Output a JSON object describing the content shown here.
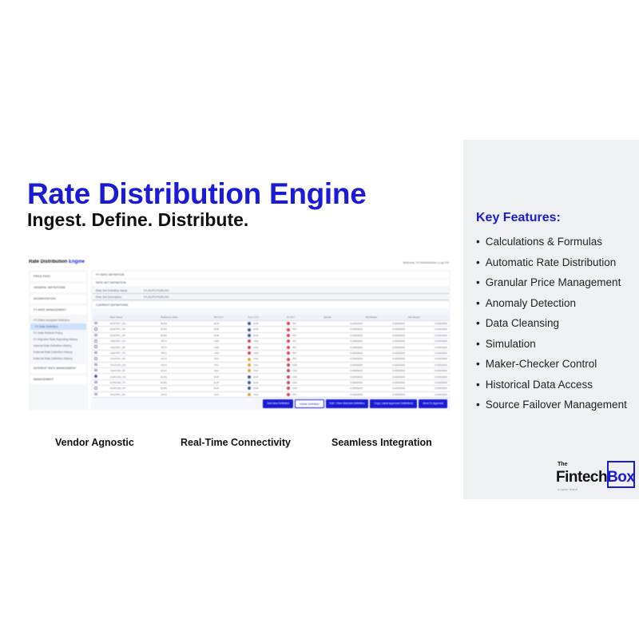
{
  "title": "Rate Distribution Engine",
  "subtitle": "Ingest. Define. Distribute.",
  "key_features": {
    "heading": "Key Features:",
    "items": [
      "Calculations & Formulas",
      "Automatic Rate Distribution",
      "Granular Price Management",
      "Anomaly Detection",
      "Data Cleansing",
      "Simulation",
      "Maker-Checker Control",
      "Historical Data Access",
      "Source Failover Management"
    ]
  },
  "captions": [
    "Vendor Agnostic",
    "Real-Time Connectivity",
    "Seamless Integration"
  ],
  "logo": {
    "the": "The",
    "fintech": "Fintech",
    "box": "Box",
    "sub": "a Lykke brand"
  },
  "screenshot": {
    "title_a": "Rate Distribution",
    "title_b": "Engine",
    "welcome": "Welcome, FX Administrator  |  Log Out",
    "sidebar": [
      "PRICE FEED",
      "GENERAL DEFINITIONS",
      "SEGMENTATION",
      "FX RATE MANAGEMENT"
    ],
    "subitems": [
      "FX Rates Accepted Selection",
      "FX Rate Definition",
      "FX Rate Refresh Policy",
      "FX Adjusted Rate Reporting History",
      "Internal Rate Definition History",
      "External Rate Definition History",
      "External Rate Definition History"
    ],
    "sidebar_bottom": [
      "INTEREST RATE MANAGEMENT",
      "MANAGEMENT"
    ],
    "section": "FX RATE DEFINITION",
    "rateset": "RATE SET DEFINITION",
    "fields": [
      [
        "Rate Set Definition Name",
        "FX-AUTO-PUBLISH"
      ],
      [
        "Rate Set Description",
        "FX-AUTO-PUBLISH"
      ]
    ],
    "current": "CURRENT DEFINITIONS",
    "columns": [
      "",
      "Rate Name",
      "Reference Rate",
      "Ref CCY",
      "From CCY",
      "To CCY",
      "Spread",
      "Bid Margin",
      "Ask Margin"
    ],
    "rows": [
      [
        "EUR/TRY_ON",
        "EUR1",
        "EUR",
        "EUR",
        "TRY"
      ],
      [
        "EUR/TRY_TN",
        "EUR1",
        "EUR",
        "EUR",
        "TRY"
      ],
      [
        "EUR/TRY_SP",
        "EUR1",
        "EUR",
        "EUR",
        "TRY"
      ],
      [
        "USD/TRY_ON",
        "TRY1",
        "USD",
        "USD",
        "TRY"
      ],
      [
        "USD/TRY_SP",
        "TRY1",
        "USD",
        "USD",
        "TRY"
      ],
      [
        "USD/TRY_TN",
        "TRY1",
        "USD",
        "USD",
        "TRY"
      ],
      [
        "XAU/TRY_ON",
        "XAU1",
        "XAU",
        "XAU",
        "TRY"
      ],
      [
        "XAU/USD_ON",
        "XAU1",
        "XAU",
        "XAU",
        "USD"
      ],
      [
        "XAU/USD_SP",
        "XAU1",
        "XAU",
        "XAU",
        "USD"
      ],
      [
        "EUR/USD_ON",
        "EUR1",
        "EUR",
        "EUR",
        "USD"
      ],
      [
        "EUR/USD_TN",
        "EUR1",
        "EUR",
        "EUR",
        "USD"
      ],
      [
        "EUR/USD_SP",
        "EUR1",
        "EUR",
        "EUR",
        "USD"
      ],
      [
        "XAU/TRY_SP",
        "XAU1",
        "XAU",
        "XAU",
        "TRY"
      ]
    ],
    "selected_row": 9,
    "zero": "0.00000000",
    "buttons": [
      "Add New Definition",
      "Delete Definition",
      "Edit / View Selected Definition",
      "Copy Latest Approved Definitions",
      "Send To Approval"
    ]
  },
  "colors": {
    "accent": "#1b1bd6",
    "panel": "#eef0f3",
    "EUR": "#3a5a9a",
    "USD": "#c04a5a",
    "TRY": "#e0404a",
    "XAU": "#d4a83a"
  }
}
